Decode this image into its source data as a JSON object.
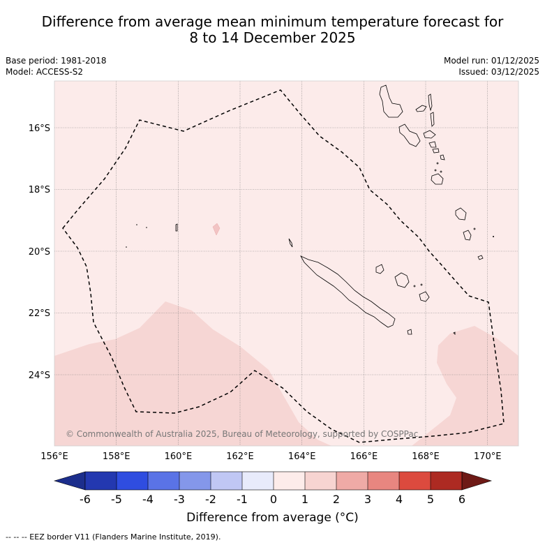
{
  "title_line1": "Difference from average mean minimum temperature forecast for",
  "title_line2": "8 to 14 December 2025",
  "base_period": "Base period: 1981-2018",
  "model": "Model: ACCESS-S2",
  "model_run": "Model run: 01/12/2025",
  "issued": "Issued: 03/12/2025",
  "lat_labels": [
    "16°S",
    "18°S",
    "20°S",
    "22°S",
    "24°S"
  ],
  "lon_labels": [
    "156°E",
    "158°E",
    "160°E",
    "162°E",
    "164°E",
    "166°E",
    "168°E",
    "170°E"
  ],
  "copyright": "© Commonwealth of Australia 2025, Bureau of Meteorology, supported by COSPPac",
  "colorbar": {
    "ticks": [
      "-6",
      "-5",
      "-4",
      "-3",
      "-2",
      "-1",
      "0",
      "1",
      "2",
      "3",
      "4",
      "5",
      "6"
    ],
    "colors": [
      "#1c2e8c",
      "#2338b0",
      "#2f4de0",
      "#5a73e6",
      "#8497ea",
      "#c0c7f4",
      "#e8ebfb",
      "#fdecea",
      "#f7d4d1",
      "#efaaa6",
      "#e88680",
      "#dc4a3e",
      "#ad2a22",
      "#6e1a16"
    ],
    "title": "Difference from average (°C)"
  },
  "footnote": "--  --  -- EEZ border V11 (Flanders Marine Institute, 2019).",
  "map_colors": {
    "base": "#fcebea",
    "warm": "#f6d6d4",
    "coast": "#000000"
  }
}
